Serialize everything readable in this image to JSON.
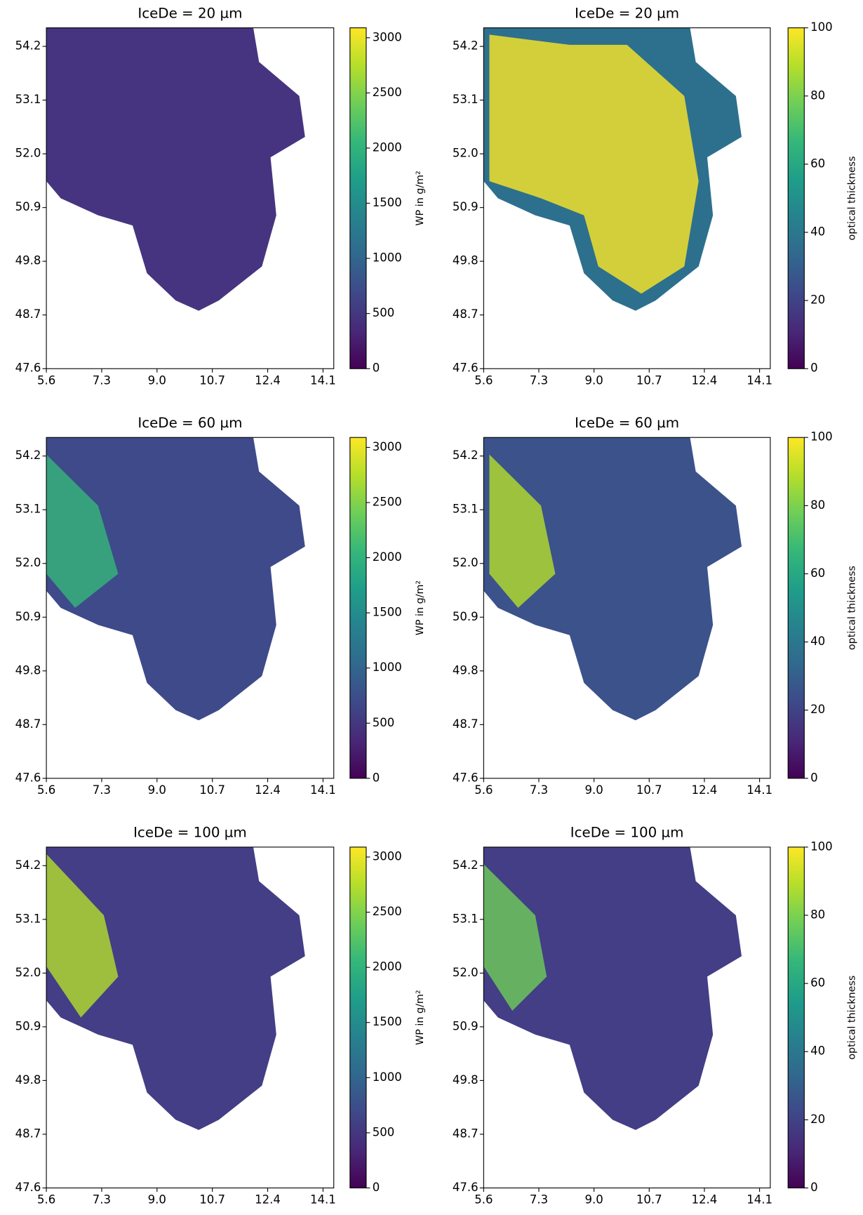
{
  "chart_data": [
    {
      "type": "heatmap",
      "title": "IceDe = 20 µm",
      "xlim": [
        5.6,
        14.43
      ],
      "ylim": [
        47.6,
        54.58
      ],
      "xticks": [
        5.6,
        7.3,
        {
          "value": 9,
          "label": "9.0"
        },
        10.7,
        12.4,
        14.1
      ],
      "yticks": [
        47.6,
        48.7,
        49.8,
        50.9,
        {
          "value": 52,
          "label": "52.0"
        },
        53.1,
        54.2
      ],
      "colorbar": {
        "label": "WP in g/m²",
        "colormap": "viridis",
        "lim": [
          0,
          3090
        ],
        "ticks": [
          0,
          500,
          1000,
          1500,
          2000,
          2500,
          3000
        ]
      }
    },
    {
      "type": "heatmap",
      "title": "IceDe = 20 µm",
      "xlim": [
        5.6,
        14.43
      ],
      "ylim": [
        47.6,
        54.58
      ],
      "xticks": [
        5.6,
        7.3,
        {
          "value": 9,
          "label": "9.0"
        },
        10.7,
        12.4,
        14.1
      ],
      "yticks": [
        47.6,
        48.7,
        49.8,
        50.9,
        {
          "value": 52,
          "label": "52.0"
        },
        53.1,
        54.2
      ],
      "colorbar": {
        "label": "optical thickness",
        "colormap": "viridis",
        "lim": [
          0,
          100
        ],
        "ticks": [
          0,
          20,
          40,
          60,
          80,
          100
        ]
      }
    },
    {
      "type": "heatmap",
      "title": "IceDe = 60 µm",
      "xlim": [
        5.6,
        14.43
      ],
      "ylim": [
        47.6,
        54.58
      ],
      "xticks": [
        5.6,
        7.3,
        {
          "value": 9,
          "label": "9.0"
        },
        10.7,
        12.4,
        14.1
      ],
      "yticks": [
        47.6,
        48.7,
        49.8,
        50.9,
        {
          "value": 52,
          "label": "52.0"
        },
        53.1,
        54.2
      ],
      "colorbar": {
        "label": "WP in g/m²",
        "colormap": "viridis",
        "lim": [
          0,
          3090
        ],
        "ticks": [
          0,
          500,
          1000,
          1500,
          2000,
          2500,
          3000
        ]
      }
    },
    {
      "type": "heatmap",
      "title": "IceDe = 60 µm",
      "xlim": [
        5.6,
        14.43
      ],
      "ylim": [
        47.6,
        54.58
      ],
      "xticks": [
        5.6,
        7.3,
        {
          "value": 9,
          "label": "9.0"
        },
        10.7,
        12.4,
        14.1
      ],
      "yticks": [
        47.6,
        48.7,
        49.8,
        50.9,
        {
          "value": 52,
          "label": "52.0"
        },
        53.1,
        54.2
      ],
      "colorbar": {
        "label": "optical thickness",
        "colormap": "viridis",
        "lim": [
          0,
          100
        ],
        "ticks": [
          0,
          20,
          40,
          60,
          80,
          100
        ]
      }
    },
    {
      "type": "heatmap",
      "title": "IceDe = 100 µm",
      "xlim": [
        5.6,
        14.43
      ],
      "ylim": [
        47.6,
        54.58
      ],
      "xticks": [
        5.6,
        7.3,
        {
          "value": 9,
          "label": "9.0"
        },
        10.7,
        12.4,
        14.1
      ],
      "yticks": [
        47.6,
        48.7,
        49.8,
        50.9,
        {
          "value": 52,
          "label": "52.0"
        },
        53.1,
        54.2
      ],
      "colorbar": {
        "label": "WP in g/m²",
        "colormap": "viridis",
        "lim": [
          0,
          3090
        ],
        "ticks": [
          0,
          500,
          1000,
          1500,
          2000,
          2500,
          3000
        ]
      }
    },
    {
      "type": "heatmap",
      "title": "IceDe = 100 µm",
      "xlim": [
        5.6,
        14.43
      ],
      "ylim": [
        47.6,
        54.58
      ],
      "xticks": [
        5.6,
        7.3,
        {
          "value": 9,
          "label": "9.0"
        },
        10.7,
        12.4,
        14.1
      ],
      "yticks": [
        47.6,
        48.7,
        49.8,
        50.9,
        {
          "value": 52,
          "label": "52.0"
        },
        53.1,
        54.2
      ],
      "colorbar": {
        "label": "optical thickness",
        "colormap": "viridis",
        "lim": [
          0,
          100
        ],
        "ticks": [
          0,
          20,
          40,
          60,
          80,
          100
        ]
      }
    }
  ]
}
